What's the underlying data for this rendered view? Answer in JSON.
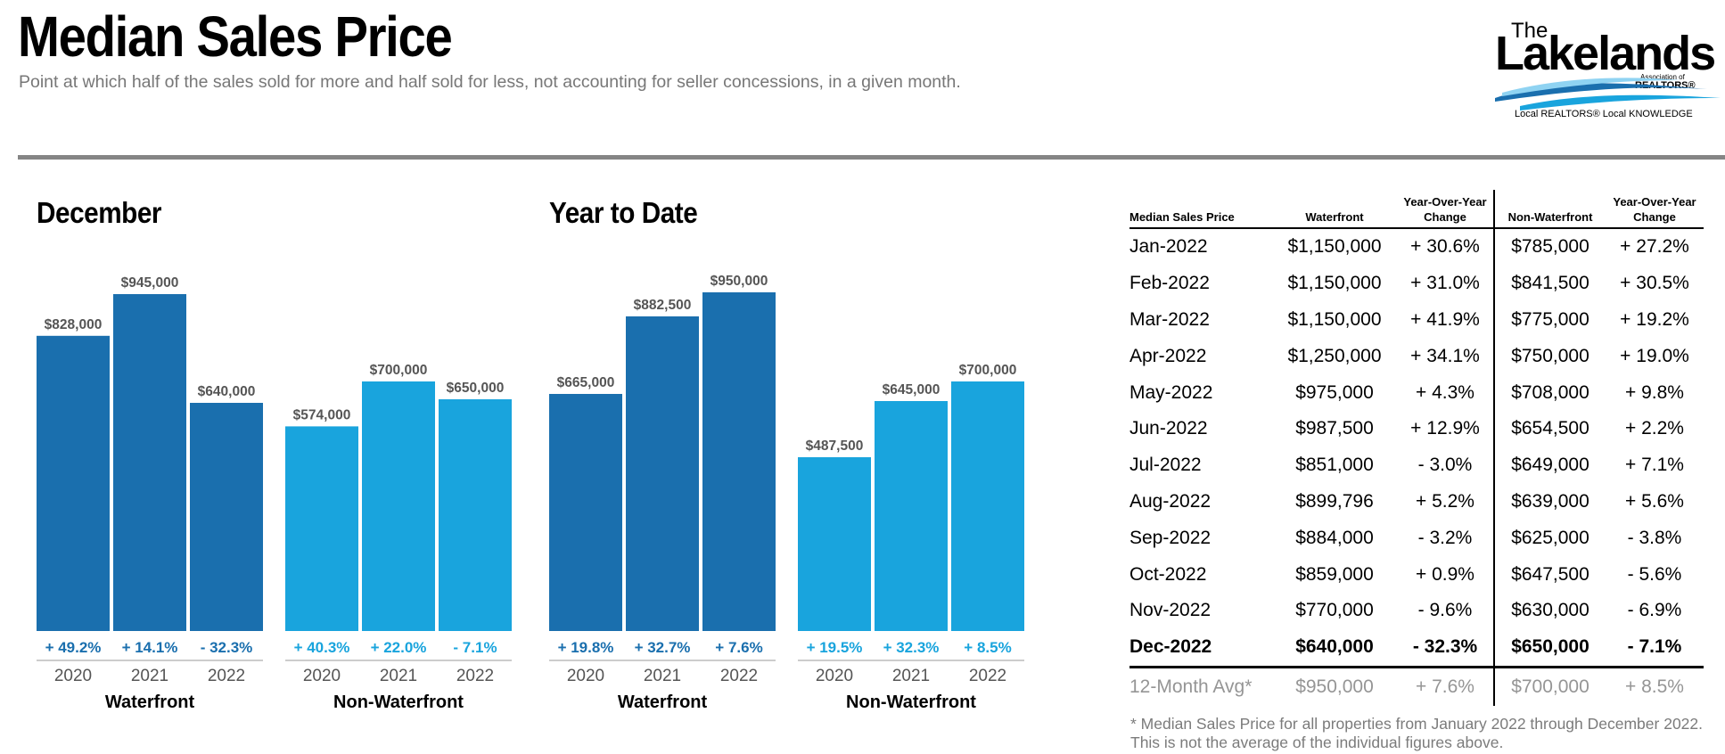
{
  "header": {
    "title": "Median Sales Price",
    "subtitle": "Point at which half of the sales sold for more and half sold for less, not accounting for seller concessions, in a given month."
  },
  "logo": {
    "the": "The",
    "name": "Lakelands",
    "assoc": "Association of",
    "realtors": "REALTORS®",
    "tagline": "Local REALTORS® Local KNOWLEDGE"
  },
  "colors": {
    "waterfront": "#1a6fae",
    "non_waterfront": "#19a4dd",
    "change_text": "#1a6fae",
    "change_text_light": "#19a4dd",
    "rule": "#858585",
    "muted": "#959595"
  },
  "sections": {
    "december": "December",
    "ytd": "Year to Date"
  },
  "chart_data": [
    {
      "type": "bar",
      "title": "December",
      "groups": [
        {
          "name": "Waterfront",
          "categories": [
            "2020",
            "2021",
            "2022"
          ],
          "values": [
            828000,
            945000,
            640000
          ],
          "value_labels": [
            "$828,000",
            "$945,000",
            "$640,000"
          ],
          "changes": [
            "+ 49.2%",
            "+ 14.1%",
            "- 32.3%"
          ]
        },
        {
          "name": "Non-Waterfront",
          "categories": [
            "2020",
            "2021",
            "2022"
          ],
          "values": [
            574000,
            700000,
            650000
          ],
          "value_labels": [
            "$574,000",
            "$700,000",
            "$650,000"
          ],
          "changes": [
            "+ 40.3%",
            "+ 22.0%",
            "- 7.1%"
          ]
        }
      ],
      "ylim": [
        0,
        1000000
      ]
    },
    {
      "type": "bar",
      "title": "Year to Date",
      "groups": [
        {
          "name": "Waterfront",
          "categories": [
            "2020",
            "2021",
            "2022"
          ],
          "values": [
            665000,
            882500,
            950000
          ],
          "value_labels": [
            "$665,000",
            "$882,500",
            "$950,000"
          ],
          "changes": [
            "+ 19.8%",
            "+ 32.7%",
            "+ 7.6%"
          ]
        },
        {
          "name": "Non-Waterfront",
          "categories": [
            "2020",
            "2021",
            "2022"
          ],
          "values": [
            487500,
            645000,
            700000
          ],
          "value_labels": [
            "$487,500",
            "$645,000",
            "$700,000"
          ],
          "changes": [
            "+ 19.5%",
            "+ 32.3%",
            "+ 8.5%"
          ]
        }
      ],
      "ylim": [
        0,
        1000000
      ]
    }
  ],
  "table": {
    "headers": {
      "month": "Median Sales Price",
      "waterfront": "Waterfront",
      "yoy_line1": "Year-Over-Year",
      "yoy_line2": "Change",
      "non_waterfront": "Non-Waterfront"
    },
    "rows": [
      {
        "month": "Jan-2022",
        "wf": "$1,150,000",
        "wf_chg": "+ 30.6%",
        "nwf": "$785,000",
        "nwf_chg": "+ 27.2%"
      },
      {
        "month": "Feb-2022",
        "wf": "$1,150,000",
        "wf_chg": "+ 31.0%",
        "nwf": "$841,500",
        "nwf_chg": "+ 30.5%"
      },
      {
        "month": "Mar-2022",
        "wf": "$1,150,000",
        "wf_chg": "+ 41.9%",
        "nwf": "$775,000",
        "nwf_chg": "+ 19.2%"
      },
      {
        "month": "Apr-2022",
        "wf": "$1,250,000",
        "wf_chg": "+ 34.1%",
        "nwf": "$750,000",
        "nwf_chg": "+ 19.0%"
      },
      {
        "month": "May-2022",
        "wf": "$975,000",
        "wf_chg": "+ 4.3%",
        "nwf": "$708,000",
        "nwf_chg": "+ 9.8%"
      },
      {
        "month": "Jun-2022",
        "wf": "$987,500",
        "wf_chg": "+ 12.9%",
        "nwf": "$654,500",
        "nwf_chg": "+ 2.2%"
      },
      {
        "month": "Jul-2022",
        "wf": "$851,000",
        "wf_chg": "- 3.0%",
        "nwf": "$649,000",
        "nwf_chg": "+ 7.1%"
      },
      {
        "month": "Aug-2022",
        "wf": "$899,796",
        "wf_chg": "+ 5.2%",
        "nwf": "$639,000",
        "nwf_chg": "+ 5.6%"
      },
      {
        "month": "Sep-2022",
        "wf": "$884,000",
        "wf_chg": "- 3.2%",
        "nwf": "$625,000",
        "nwf_chg": "- 3.8%"
      },
      {
        "month": "Oct-2022",
        "wf": "$859,000",
        "wf_chg": "+ 0.9%",
        "nwf": "$647,500",
        "nwf_chg": "- 5.6%"
      },
      {
        "month": "Nov-2022",
        "wf": "$770,000",
        "wf_chg": "- 9.6%",
        "nwf": "$630,000",
        "nwf_chg": "- 6.9%"
      },
      {
        "month": "Dec-2022",
        "wf": "$640,000",
        "wf_chg": "- 32.3%",
        "nwf": "$650,000",
        "nwf_chg": "- 7.1%"
      }
    ],
    "avg": {
      "month": "12-Month Avg*",
      "wf": "$950,000",
      "wf_chg": "+ 7.6%",
      "nwf": "$700,000",
      "nwf_chg": "+ 8.5%"
    },
    "footnote": "* Median Sales Price for all properties from January 2022 through December 2022. This is not the average of the individual figures above."
  }
}
